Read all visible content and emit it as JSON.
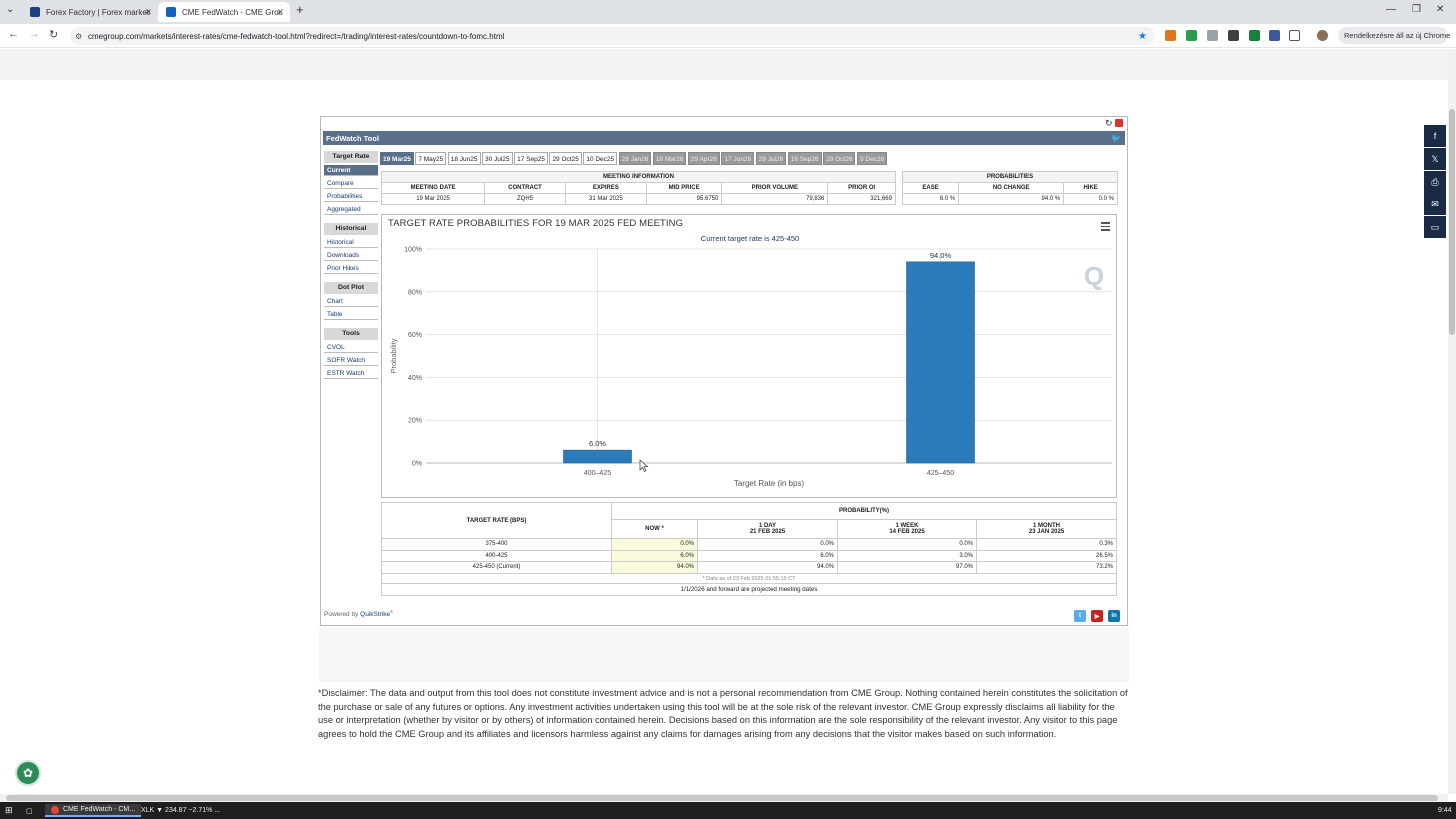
{
  "browser": {
    "tabs": [
      {
        "label": "Forex Factory | Forex markets fo",
        "active": false
      },
      {
        "label": "CME FedWatch - CME Group",
        "active": true
      }
    ],
    "url": "cmegroup.com/markets/interest-rates/cme-fedwatch-tool.html?redirect=/trading/interest-rates/countdown-to-fomc.html",
    "profile_button": "Rendelkezésre áll az új Chrome"
  },
  "widget": {
    "title": "FedWatch Tool",
    "sidebar": {
      "sections": [
        {
          "header": "Target Rate",
          "items": [
            "Current",
            "Compare",
            "Probabilities",
            "Aggregated"
          ],
          "selected": "Current"
        },
        {
          "header": "Historical",
          "items": [
            "Historical",
            "Downloads",
            "Prior Hikes"
          ]
        },
        {
          "header": "Dot Plot",
          "items": [
            "Chart",
            "Table"
          ]
        },
        {
          "header": "Tools",
          "items": [
            "CVOL",
            "SOFR Watch",
            "ESTR Watch"
          ]
        }
      ]
    },
    "meeting_tabs": [
      {
        "label": "19 Mar25",
        "state": "selected"
      },
      {
        "label": "7 May25",
        "state": "normal"
      },
      {
        "label": "18 Jun25",
        "state": "normal"
      },
      {
        "label": "30 Jul25",
        "state": "normal"
      },
      {
        "label": "17 Sep25",
        "state": "normal"
      },
      {
        "label": "29 Oct25",
        "state": "normal"
      },
      {
        "label": "10 Dec25",
        "state": "normal"
      },
      {
        "label": "28 Jan26",
        "state": "projected"
      },
      {
        "label": "18 Mar26",
        "state": "projected"
      },
      {
        "label": "29 Apr26",
        "state": "projected"
      },
      {
        "label": "17 Jun26",
        "state": "projected"
      },
      {
        "label": "29 Jul26",
        "state": "projected"
      },
      {
        "label": "16 Sep26",
        "state": "projected"
      },
      {
        "label": "28 Oct26",
        "state": "projected"
      },
      {
        "label": "9 Dec26",
        "state": "projected"
      }
    ],
    "meeting_info": {
      "group_label": "MEETING INFORMATION",
      "headers": [
        "MEETING DATE",
        "CONTRACT",
        "EXPIRES",
        "MID PRICE",
        "PRIOR VOLUME",
        "PRIOR OI"
      ],
      "values": [
        "19 Mar 2025",
        "ZQH5",
        "31 Mar 2025",
        "95.6750",
        "79,836",
        "321,669"
      ]
    },
    "probabilities": {
      "group_label": "PROBABILITIES",
      "headers": [
        "EASE",
        "NO CHANGE",
        "HIKE"
      ],
      "values": [
        "6.0 %",
        "94.0 %",
        "0.0 %"
      ]
    },
    "chart": {
      "title": "TARGET RATE PROBABILITIES FOR 19 MAR 2025 FED MEETING",
      "subtitle": "Current target rate is 425-450",
      "watermark": "Q"
    },
    "prob_table": {
      "col1_header": "TARGET RATE (BPS)",
      "group_header": "PROBABILITY(%)",
      "columns": [
        {
          "line1": "NOW *",
          "line2": ""
        },
        {
          "line1": "1 DAY",
          "line2": "21 FEB 2025"
        },
        {
          "line1": "1 WEEK",
          "line2": "14 FEB 2025"
        },
        {
          "line1": "1 MONTH",
          "line2": "23 JAN 2025"
        }
      ],
      "rows": [
        {
          "rate": "375-400",
          "values": [
            "0.0%",
            "0.0%",
            "0.0%",
            "0.3%"
          ]
        },
        {
          "rate": "400-425",
          "values": [
            "6.0%",
            "6.0%",
            "3.0%",
            "26.5%"
          ]
        },
        {
          "rate": "425-450 (Current)",
          "values": [
            "94.0%",
            "94.0%",
            "97.0%",
            "73.2%"
          ]
        }
      ],
      "note": "* Data as of 23 Feb 2025 01:55:15 CT",
      "projected_note": "1/1/2026 and forward are projected meeting dates"
    },
    "powered_by": "Powered by",
    "powered_brand": "QuikStrike"
  },
  "chart_data": {
    "type": "bar",
    "title": "TARGET RATE PROBABILITIES FOR 19 MAR 2025 FED MEETING",
    "subtitle": "Current target rate is 425-450",
    "categories": [
      "400–425",
      "425–450"
    ],
    "values": [
      6.0,
      94.0
    ],
    "data_labels": [
      "6.0%",
      "94.0%"
    ],
    "xlabel": "Target Rate (in bps)",
    "ylabel": "Probability",
    "ylim": [
      0,
      100
    ],
    "yticks": [
      "0%",
      "20%",
      "40%",
      "60%",
      "80%",
      "100%"
    ],
    "grid": true,
    "bar_color": "#2b7bba"
  },
  "disclaimer": "*Disclaimer: The data and output from this tool does not constitute investment advice and is not a personal recommendation from CME Group.  Nothing contained herein constitutes the solicitation of the purchase or sale of any futures or options.  Any investment activities undertaken using this tool will be at the sole risk of the relevant investor.  CME Group expressly disclaims all liability for the use or interpretation (whether by visitor or by others) of information contained herein. Decisions based on this information are the sole responsibility of the relevant investor.  Any visitor to this page agrees to hold the CME Group and its affiliates and licensors harmless against any claims for damages arising from any decisions that the visitor makes based on such information.",
  "taskbar": {
    "items": [
      "CME FedWatch - CM...",
      "XLK ▼ 234.87 −2.71% ..."
    ],
    "clock": "9:44"
  }
}
